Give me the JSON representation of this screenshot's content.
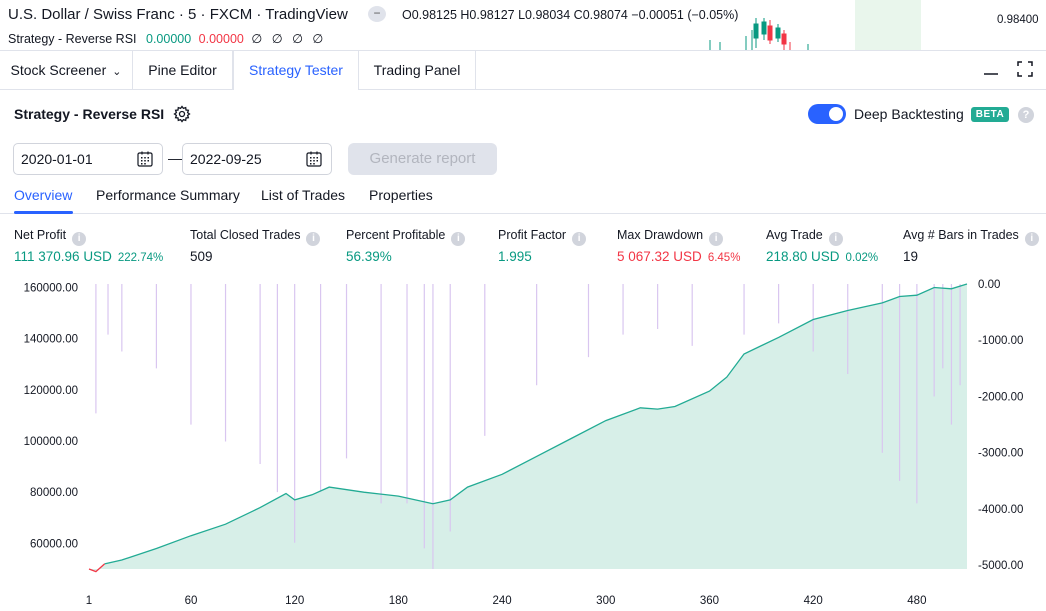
{
  "top": {
    "symbol_title": "U.S. Dollar / Swiss Franc · 5 · FXCM · TradingView",
    "collapse_glyph": "−",
    "ohlc": "O0.98125 H0.98127 L0.98034 C0.98074 −0.00051 (−0.05%)",
    "strategy_label": "Strategy - Reverse RSI",
    "strategy_value1": "0.00000",
    "strategy_value2": "0.00000",
    "strategy_value3": "∅ ∅ ∅ ∅",
    "price_label": "0.98400"
  },
  "tabs": {
    "stock_screener": "Stock Screener",
    "pine_editor": "Pine Editor",
    "strategy_tester": "Strategy Tester",
    "trading_panel": "Trading Panel"
  },
  "header": {
    "strategy_name": "Strategy - Reverse RSI",
    "deep_backtesting": "Deep Backtesting",
    "beta": "BETA",
    "help": "?"
  },
  "dates": {
    "start": "2020-01-01",
    "end": "2022-09-25",
    "separator": "—",
    "generate_label": "Generate report"
  },
  "subtabs": {
    "overview": "Overview",
    "performance_summary": "Performance Summary",
    "list_of_trades": "List of Trades",
    "properties": "Properties"
  },
  "metrics": {
    "net_profit": {
      "label": "Net Profit",
      "value": "111 370.96 USD",
      "pct": "222.74%"
    },
    "total_closed_trades": {
      "label": "Total Closed Trades",
      "value": "509"
    },
    "percent_profitable": {
      "label": "Percent Profitable",
      "value": "56.39%"
    },
    "profit_factor": {
      "label": "Profit Factor",
      "value": "1.995"
    },
    "max_drawdown": {
      "label": "Max Drawdown",
      "value": "5 067.32 USD",
      "pct": "6.45%"
    },
    "avg_trade": {
      "label": "Avg Trade",
      "value": "218.80 USD",
      "pct": "0.02%"
    },
    "avg_bars": {
      "label": "Avg # Bars in Trades",
      "value": "19"
    }
  },
  "colors": {
    "accent": "#2962ff",
    "equity_line": "#22ab94",
    "equity_fill": "#d7efe8",
    "drawdown_bar": "#d9c6f0",
    "loss_line": "#f23645"
  },
  "chart_data": {
    "type": "area",
    "left_axis": {
      "ticks": [
        "160000.00",
        "140000.00",
        "120000.00",
        "100000.00",
        "80000.00",
        "60000.00"
      ],
      "range": [
        50000,
        161370.96
      ]
    },
    "right_axis": {
      "ticks": [
        "0.00",
        "-1000.00",
        "-2000.00",
        "-3000.00",
        "-4000.00",
        "-5000.00"
      ],
      "range": [
        -5067.32,
        0
      ]
    },
    "x_ticks": [
      "1",
      "60",
      "120",
      "180",
      "240",
      "300",
      "360",
      "420",
      "480"
    ],
    "x_range": [
      1,
      509
    ],
    "series": [
      {
        "type": "line",
        "x": [
          1,
          5,
          10,
          20,
          40,
          60,
          80,
          100,
          115,
          120,
          130,
          140,
          160,
          180,
          200,
          210,
          220,
          240,
          260,
          280,
          300,
          320,
          330,
          340,
          360,
          370,
          380,
          400,
          420,
          440,
          460,
          470,
          480,
          490,
          500,
          509
        ],
        "values": [
          50000,
          49000,
          52000,
          53500,
          58000,
          63000,
          67500,
          74000,
          79500,
          77000,
          79000,
          82000,
          80000,
          78500,
          75500,
          77000,
          82000,
          87000,
          94000,
          101000,
          108000,
          113000,
          112500,
          113500,
          119500,
          125000,
          134000,
          140500,
          147500,
          151000,
          154000,
          156500,
          157000,
          160000,
          159500,
          161370.96
        ]
      },
      {
        "type": "bar",
        "x": [
          5,
          12,
          20,
          40,
          60,
          80,
          100,
          110,
          120,
          135,
          150,
          170,
          185,
          195,
          200,
          210,
          230,
          260,
          290,
          310,
          330,
          350,
          380,
          400,
          420,
          440,
          460,
          470,
          480,
          490,
          495,
          500,
          505
        ],
        "values": [
          -2300,
          -900,
          -1200,
          -1500,
          -2500,
          -2800,
          -3200,
          -3700,
          -4600,
          -3700,
          -3100,
          -3900,
          -3900,
          -4700,
          -5067.32,
          -4400,
          -2700,
          -1800,
          -1300,
          -900,
          -800,
          -1100,
          -900,
          -700,
          -1200,
          -1600,
          -3000,
          -3500,
          -3900,
          -2000,
          -1500,
          -2500,
          -1800
        ]
      }
    ]
  }
}
